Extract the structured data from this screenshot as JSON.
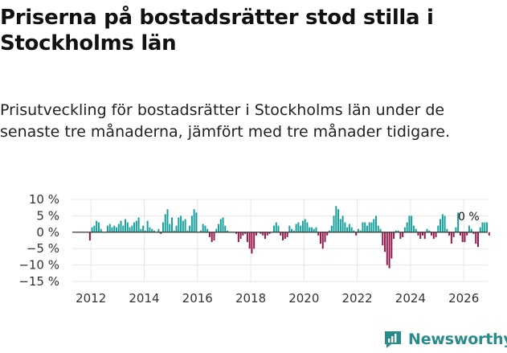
{
  "title": "Priserna på bostadsrätter stod stilla i Stockholms län",
  "subtitle": "Prisutveckling för bostadsrätter i Stockholms län under de senaste tre månaderna, jämfört med tre månader tidigare.",
  "brand": {
    "name": "Newsworthy"
  },
  "colors": {
    "positive": "#17a09b",
    "negative": "#96174a",
    "zero_line": "#222222",
    "axis_text": "#333333",
    "brand": "#2a8c8a"
  },
  "chart_data": {
    "type": "bar",
    "ylabel": "",
    "xlabel": "",
    "ylim": [
      -15,
      10
    ],
    "yticks": [
      10,
      5,
      0,
      -5,
      -10,
      -15
    ],
    "ytick_labels": [
      "10 %",
      "5 %",
      "0 %",
      "−5 %",
      "−10 %",
      "−15 %"
    ],
    "xticks": [
      2012,
      2014,
      2016,
      2018,
      2020,
      2022,
      2024,
      2026
    ],
    "xtick_labels": [
      "2012",
      "2014",
      "2016",
      "2018",
      "2020",
      "2022",
      "2024",
      "2026"
    ],
    "x_start": 2011.96,
    "x_step": 0.0833,
    "values": [
      -2.5,
      1.5,
      2,
      3.5,
      3,
      1,
      0,
      0,
      2,
      2.5,
      1.5,
      2,
      1.5,
      2.5,
      3.5,
      2,
      4,
      3,
      1.5,
      2,
      3,
      3.5,
      4.5,
      1,
      2,
      0.5,
      3.5,
      1.5,
      1,
      0.5,
      0,
      1,
      -0.5,
      3,
      5.5,
      7,
      2.5,
      4.5,
      0.5,
      2,
      4.5,
      5,
      3.5,
      4,
      0.5,
      2,
      5,
      7,
      6,
      0,
      0.5,
      2.5,
      2,
      1,
      -1.5,
      -3,
      -2.5,
      1,
      2.5,
      4,
      4.5,
      2,
      0.5,
      0,
      0,
      0,
      -0.5,
      -3,
      -2,
      -1,
      -0.5,
      -3,
      -5,
      -6.5,
      -5,
      -1,
      0,
      -0.5,
      -1,
      -2,
      -1,
      -0.5,
      0,
      2,
      3,
      2,
      -1,
      -2.5,
      -2,
      -1.5,
      2,
      1,
      0.5,
      2.5,
      3,
      2,
      3.5,
      4,
      3,
      1.5,
      1.5,
      1,
      1.5,
      -1,
      -3.5,
      -5,
      -3,
      -1,
      0.5,
      2,
      5,
      8,
      7,
      4,
      5,
      3,
      1.5,
      2.5,
      1.5,
      0.5,
      -1,
      1,
      0.5,
      3,
      3,
      2,
      3,
      3,
      4,
      5,
      2,
      1,
      -4,
      -6,
      -10,
      -11,
      -8,
      -2,
      0.5,
      0.5,
      -2,
      -1.5,
      1.5,
      3,
      5,
      5,
      2,
      1,
      -1,
      -2,
      -1,
      -2,
      1,
      0.5,
      -1,
      -2,
      -1.5,
      2,
      4,
      5.5,
      5,
      1,
      -1,
      -3.5,
      -1.5,
      1.5,
      6,
      -1,
      -3,
      -3,
      -1,
      2,
      1,
      -0.5,
      -3.5,
      -4.5,
      1.5,
      3,
      3,
      3,
      -1
    ],
    "annotation": {
      "text": "0 %",
      "value": 0
    }
  }
}
